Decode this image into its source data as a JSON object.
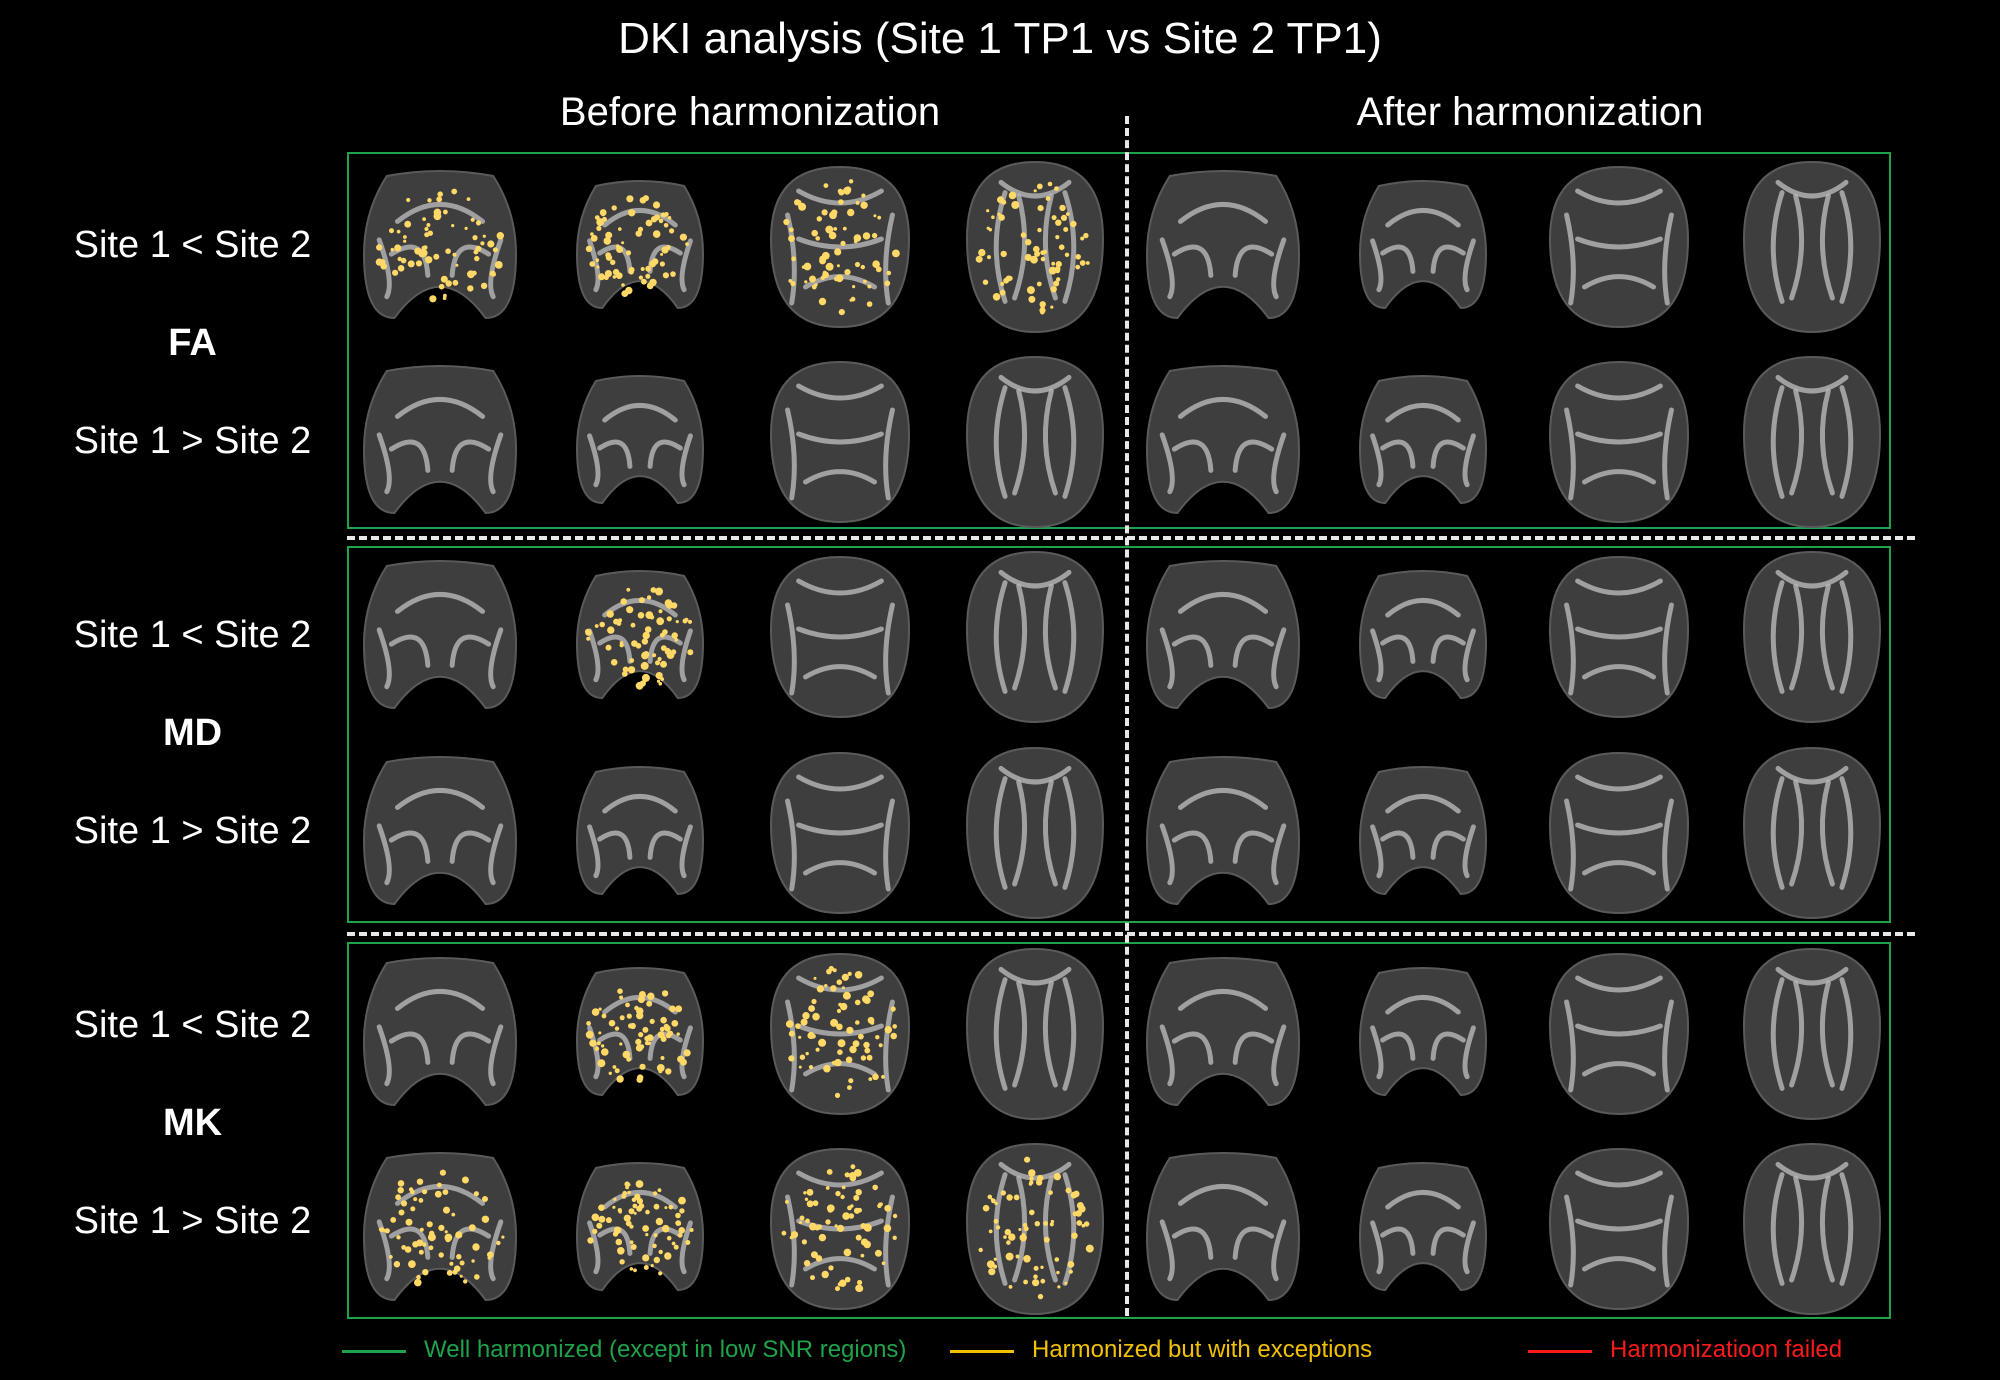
{
  "title": "DKI analysis (Site 1 TP1 vs Site 2 TP1)",
  "columns": {
    "before": "Before harmonization",
    "after": "After harmonization"
  },
  "groups": [
    {
      "metric": "FA",
      "row_less": "Site 1 < Site 2",
      "row_greater": "Site 1 > Site 2",
      "box_color": "#1fa34a"
    },
    {
      "metric": "MD",
      "row_less": "Site 1 < Site 2",
      "row_greater": "Site 1 > Site 2",
      "box_color": "#1fa34a"
    },
    {
      "metric": "MK",
      "row_less": "Site 1 < Site 2",
      "row_greater": "Site 1 > Site 2",
      "box_color": "#1fa34a"
    }
  ],
  "legend": [
    {
      "label": "Well harmonized (except in low SNR regions)",
      "color": "#1fa34a"
    },
    {
      "label": "Harmonized but with exceptions",
      "color": "#f2c200"
    },
    {
      "label": "Harmonizatioon failed",
      "color": "#ff1a1a"
    }
  ],
  "highlight_color": "#ffd866",
  "highlighted_slices": [
    {
      "group": "FA",
      "row": "Site 1 < Site 2",
      "panel": "Before harmonization",
      "slices": [
        1,
        2,
        3,
        4
      ]
    },
    {
      "group": "MD",
      "row": "Site 1 < Site 2",
      "panel": "Before harmonization",
      "slices": [
        2
      ]
    },
    {
      "group": "MK",
      "row": "Site 1 < Site 2",
      "panel": "Before harmonization",
      "slices": [
        2,
        3
      ]
    },
    {
      "group": "MK",
      "row": "Site 1 > Site 2",
      "panel": "Before harmonization",
      "slices": [
        1,
        2,
        3,
        4
      ]
    }
  ]
}
